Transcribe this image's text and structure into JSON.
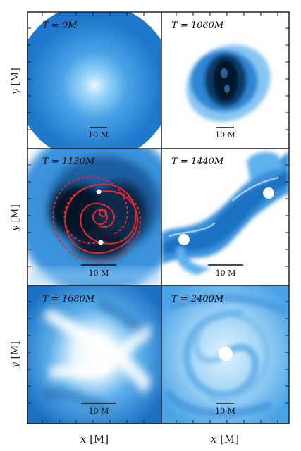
{
  "figure": {
    "y_axis_label_var": "y",
    "y_axis_label_unit": "[M]",
    "x_axis_label_var": "x",
    "x_axis_label_unit": "[M]",
    "panels": [
      {
        "id": "p1",
        "time_label": "T = 0M",
        "scale_bar_label": "10 M"
      },
      {
        "id": "p2",
        "time_label": "T = 1060M",
        "scale_bar_label": "10 M"
      },
      {
        "id": "p3",
        "time_label": "T = 1130M",
        "scale_bar_label": "10 M"
      },
      {
        "id": "p4",
        "time_label": "T = 1440M",
        "scale_bar_label": "10 M"
      },
      {
        "id": "p5",
        "time_label": "T = 1680M",
        "scale_bar_label": "10 M"
      },
      {
        "id": "p6",
        "time_label": "T = 2400M",
        "scale_bar_label": "10 M"
      }
    ],
    "colors": {
      "deep_blue": "#1a6fc4",
      "mid_blue": "#4aa3e6",
      "light_blue": "#b9e0fa",
      "dark_core": "#061a2c",
      "orbit_red": "#e0282e",
      "frame": "#222222"
    }
  }
}
